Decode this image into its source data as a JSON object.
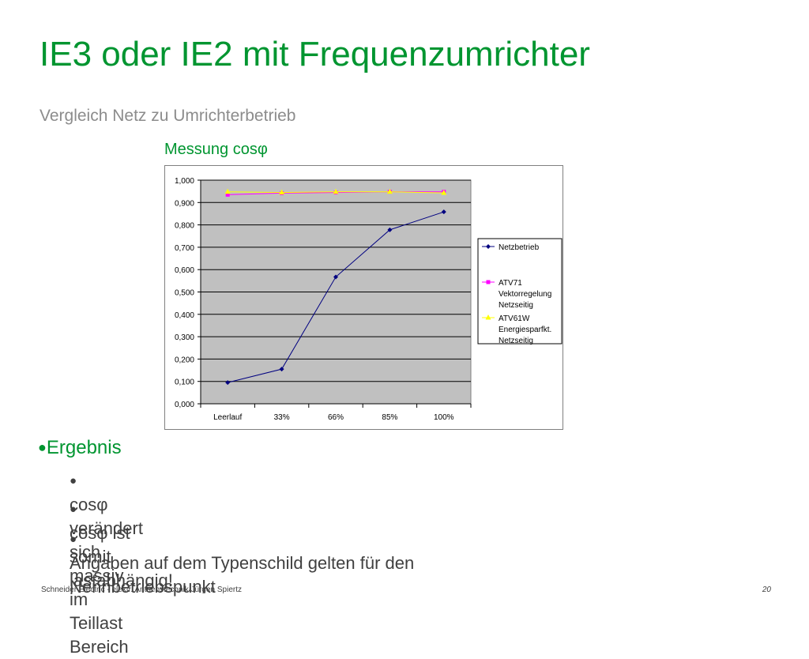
{
  "slide": {
    "title": "IE3 oder IE2 mit Frequenzumrichter",
    "subtitle": "Vergleich Netz zu Umrichterbetrieb",
    "chart_heading": "Messung cosφ"
  },
  "chart_data": {
    "type": "line",
    "categories": [
      "Leerlauf",
      "33%",
      "66%",
      "85%",
      "100%"
    ],
    "y_tick_labels": [
      "0,000",
      "0,100",
      "0,200",
      "0,300",
      "0,400",
      "0,500",
      "0,600",
      "0,700",
      "0,800",
      "0,900",
      "1,000"
    ],
    "ylim": [
      0,
      1
    ],
    "grid": true,
    "legend_position": "right",
    "plot_background": "#c0c0c0",
    "series": [
      {
        "name": "Netzbetrieb",
        "color": "#000080",
        "marker": "diamond",
        "values": [
          0.095,
          0.155,
          0.567,
          0.778,
          0.858
        ]
      },
      {
        "name": "ATV71 Vektorregelung Netzseitig",
        "color": "#ff00ff",
        "marker": "square",
        "values": [
          0.935,
          0.942,
          0.945,
          0.948,
          0.948
        ]
      },
      {
        "name": "ATV61W Energiesparfkt. Netzseitig",
        "color": "#ffff00",
        "marker": "triangle",
        "values": [
          0.948,
          0.945,
          0.948,
          0.948,
          0.943
        ]
      }
    ]
  },
  "bullets": {
    "heading": "Ergebnis",
    "heading_bullet": "●",
    "sub_bullet": "●",
    "items": [
      "cosφ verändert sich massiv im Teillast Bereich",
      "cosφ ist somit lastabhängig!",
      "Angaben auf dem Typenschild gelten für den Nennbetriebspunkt"
    ]
  },
  "footer": {
    "left": "Schneider Electric  - elektr. Antriebstechnik Jürgen Spiertz",
    "page_number": "20"
  },
  "colors": {
    "accent_green": "#009530",
    "subtitle_gray": "#8c8c8c",
    "body_text": "#404040"
  }
}
